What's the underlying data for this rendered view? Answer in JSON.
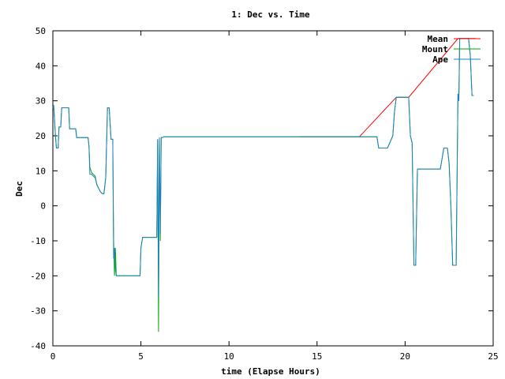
{
  "chart_data": {
    "type": "line",
    "title": "1: Dec vs. Time",
    "xlabel": "time (Elapse Hours)",
    "ylabel": "Dec",
    "xlim": [
      0,
      25
    ],
    "ylim": [
      -40,
      50
    ],
    "xticks": [
      0,
      5,
      10,
      15,
      20,
      25
    ],
    "yticks": [
      -40,
      -30,
      -20,
      -10,
      0,
      10,
      20,
      30,
      40,
      50
    ],
    "grid": false,
    "legend_position": "top-right",
    "series": [
      {
        "name": "Mean",
        "color": "#ff0000",
        "x": [
          14.0,
          17.4,
          19.5,
          20.2,
          23.0,
          24.0
        ],
        "y": [
          19.7,
          19.7,
          31.0,
          31.0,
          47.8,
          47.8
        ]
      },
      {
        "name": "Mount",
        "color": "#00aa00",
        "x": [
          0.0,
          0.05,
          0.15,
          0.2,
          0.3,
          0.35,
          0.45,
          0.5,
          0.9,
          0.95,
          1.3,
          1.35,
          1.8,
          2.0,
          2.05,
          2.1,
          2.2,
          2.3,
          2.4,
          2.5,
          2.6,
          2.7,
          2.8,
          2.9,
          3.0,
          3.1,
          3.2,
          3.3,
          3.4,
          3.45,
          3.5,
          3.55,
          3.6,
          3.65,
          3.7,
          3.75,
          3.8,
          3.85,
          4.0,
          4.5,
          4.95,
          5.0,
          5.1,
          5.9,
          5.95,
          6.0,
          6.05,
          6.1,
          6.15,
          6.2,
          6.25,
          6.3,
          14.0,
          18.4,
          18.5,
          19.0,
          19.3,
          19.4,
          19.5,
          20.2,
          20.3,
          20.4,
          20.5,
          20.6,
          20.7,
          20.8,
          21.0,
          22.0,
          22.2,
          22.3,
          22.4,
          22.5,
          22.6,
          22.7,
          22.8,
          22.9,
          23.0,
          23.05,
          23.1,
          23.2,
          23.6,
          23.7,
          23.8,
          23.9
        ],
        "y": [
          28.0,
          28.5,
          20.0,
          16.5,
          16.5,
          22.5,
          22.5,
          28.0,
          28.0,
          22.0,
          22.0,
          19.5,
          19.5,
          19.5,
          17.0,
          11.0,
          9.5,
          9.0,
          8.5,
          6.0,
          5.0,
          4.0,
          3.5,
          3.5,
          8.0,
          28.0,
          28.0,
          19.0,
          19.0,
          -10.0,
          -20.0,
          -12.0,
          -20.0,
          -20.0,
          -20.0,
          -20.0,
          -20.0,
          -20.0,
          -20.0,
          -20.0,
          -20.0,
          -12.0,
          -9.0,
          -9.0,
          19.0,
          -36.0,
          19.5,
          -10.0,
          19.5,
          19.5,
          19.6,
          19.7,
          19.7,
          19.7,
          16.5,
          16.5,
          20.0,
          27.0,
          31.0,
          31.0,
          20.0,
          18.0,
          -17.0,
          -17.0,
          10.5,
          10.5,
          10.5,
          10.5,
          16.5,
          16.5,
          16.5,
          12.0,
          0.0,
          -17.0,
          -17.0,
          -17.0,
          32.0,
          30.0,
          47.8,
          47.8,
          47.8,
          43.0,
          31.5,
          31.5
        ]
      },
      {
        "name": "Ape",
        "color": "#1f80c0",
        "x": [
          0.0,
          0.05,
          0.15,
          0.2,
          0.3,
          0.35,
          0.45,
          0.5,
          0.9,
          0.95,
          1.3,
          1.35,
          1.8,
          2.0,
          2.05,
          2.1,
          2.2,
          2.3,
          2.4,
          2.5,
          2.6,
          2.7,
          2.8,
          2.9,
          3.0,
          3.1,
          3.2,
          3.3,
          3.4,
          3.45,
          3.5,
          3.55,
          3.6,
          3.65,
          3.7,
          3.75,
          3.8,
          3.85,
          4.0,
          4.5,
          4.95,
          5.0,
          5.1,
          5.9,
          5.95,
          6.0,
          6.05,
          6.1,
          6.15,
          6.2,
          6.25,
          6.3,
          14.0,
          18.4,
          18.5,
          19.0,
          19.3,
          19.4,
          19.5,
          20.2,
          20.3,
          20.4,
          20.5,
          20.6,
          20.7,
          20.8,
          21.0,
          22.0,
          22.2,
          22.3,
          22.4,
          22.5,
          22.6,
          22.7,
          22.8,
          22.9,
          23.0,
          23.05,
          23.1,
          23.2,
          23.6,
          23.7,
          23.8,
          23.9
        ],
        "y": [
          28.0,
          28.5,
          20.0,
          16.5,
          16.5,
          22.5,
          22.5,
          28.0,
          28.0,
          22.0,
          22.0,
          19.5,
          19.5,
          19.5,
          17.0,
          9.0,
          9.0,
          8.5,
          8.0,
          6.0,
          5.0,
          4.0,
          3.5,
          3.5,
          8.0,
          28.0,
          28.0,
          19.0,
          19.0,
          -15.0,
          -12.0,
          -18.0,
          -20.0,
          -20.0,
          -20.0,
          -20.0,
          -20.0,
          -20.0,
          -20.0,
          -20.0,
          -20.0,
          -12.0,
          -9.0,
          -9.0,
          19.0,
          -26.0,
          19.5,
          -8.0,
          19.5,
          19.5,
          19.6,
          19.7,
          19.7,
          19.7,
          16.5,
          16.5,
          20.0,
          27.0,
          31.0,
          31.0,
          20.0,
          18.0,
          -17.0,
          -17.0,
          10.5,
          10.5,
          10.5,
          10.5,
          16.5,
          16.5,
          16.5,
          12.0,
          0.0,
          -17.0,
          -17.0,
          -17.0,
          32.0,
          30.0,
          47.8,
          47.8,
          47.8,
          43.0,
          31.5,
          31.5
        ]
      }
    ]
  }
}
